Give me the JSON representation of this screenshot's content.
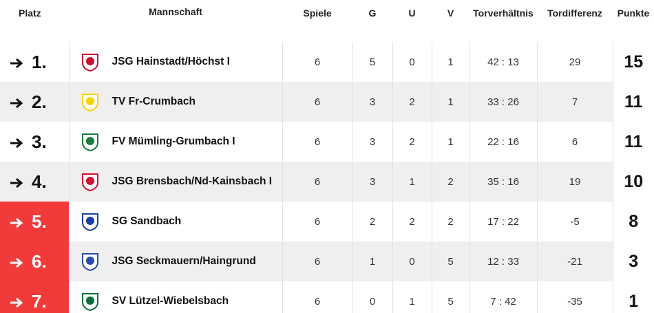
{
  "table": {
    "columns": [
      "Platz",
      "Mannschaft",
      "Spiele",
      "G",
      "U",
      "V",
      "Torverhältnis",
      "Tordifferenz",
      "Punkte"
    ],
    "rows": [
      {
        "platz": "1.",
        "team": "JSG Hainstadt/Höchst I",
        "spiele": 6,
        "g": 5,
        "u": 0,
        "v": 1,
        "tore": "42 : 13",
        "diff": 29,
        "punkte": 15
      },
      {
        "platz": "2.",
        "team": "TV Fr-Crumbach",
        "spiele": 6,
        "g": 3,
        "u": 2,
        "v": 1,
        "tore": "33 : 26",
        "diff": 7,
        "punkte": 11
      },
      {
        "platz": "3.",
        "team": "FV Mümling-Grumbach I",
        "spiele": 6,
        "g": 3,
        "u": 2,
        "v": 1,
        "tore": "22 : 16",
        "diff": 6,
        "punkte": 11
      },
      {
        "platz": "4.",
        "team": "JSG Brensbach/Nd-Kainsbach I",
        "spiele": 6,
        "g": 3,
        "u": 1,
        "v": 2,
        "tore": "35 : 16",
        "diff": 19,
        "punkte": 10
      },
      {
        "platz": "5.",
        "team": "SG Sandbach",
        "spiele": 6,
        "g": 2,
        "u": 2,
        "v": 2,
        "tore": "17 : 22",
        "diff": -5,
        "punkte": 8
      },
      {
        "platz": "6.",
        "team": "JSG Seckmauern/Haingrund",
        "spiele": 6,
        "g": 1,
        "u": 0,
        "v": 5,
        "tore": "12 : 33",
        "diff": -21,
        "punkte": 3
      },
      {
        "platz": "7.",
        "team": "SV Lützel-Wiebelsbach",
        "spiele": 6,
        "g": 0,
        "u": 1,
        "v": 5,
        "tore": "7 : 42",
        "diff": -35,
        "punkte": 1
      }
    ]
  }
}
